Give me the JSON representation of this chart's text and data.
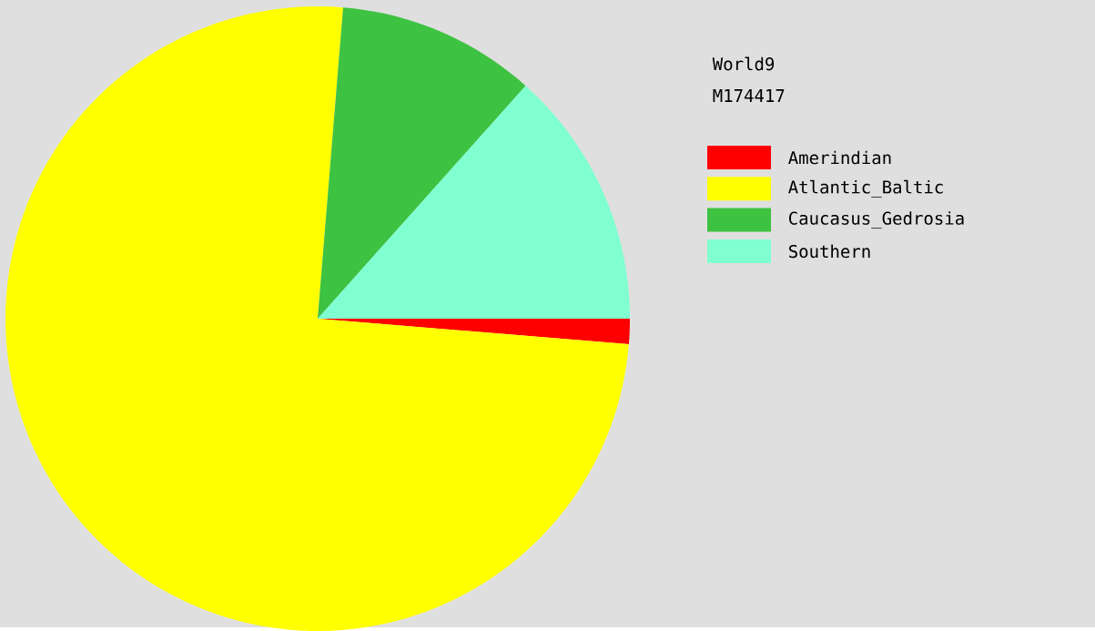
{
  "chart_data": {
    "type": "pie",
    "title": "World9",
    "subtitle": "M174417",
    "categories": [
      "Amerindian",
      "Atlantic_Baltic",
      "Caucasus_Gedrosia",
      "Southern"
    ],
    "values": [
      1.3,
      75,
      10.3,
      13.4
    ],
    "colors": [
      "#ff0000",
      "#ffff00",
      "#3ec241",
      "#80ffd0"
    ],
    "legend": "right"
  }
}
